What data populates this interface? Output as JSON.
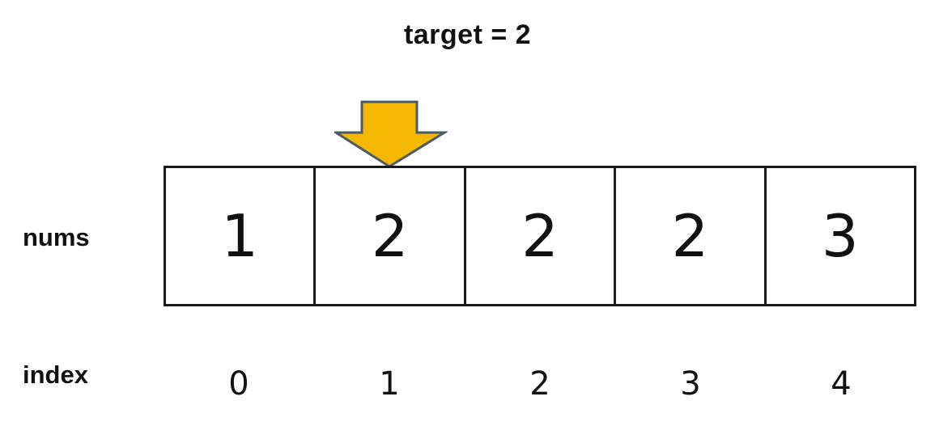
{
  "title": "target = 2",
  "row_labels": {
    "nums": "nums",
    "index": "index"
  },
  "array": {
    "values": [
      "1",
      "2",
      "2",
      "2",
      "3"
    ],
    "indices": [
      "0",
      "1",
      "2",
      "3",
      "4"
    ]
  },
  "pointer": {
    "index": 1,
    "icon": "down-arrow-icon",
    "fill_color": "#F5B800",
    "stroke_color": "#4A5A6A"
  }
}
